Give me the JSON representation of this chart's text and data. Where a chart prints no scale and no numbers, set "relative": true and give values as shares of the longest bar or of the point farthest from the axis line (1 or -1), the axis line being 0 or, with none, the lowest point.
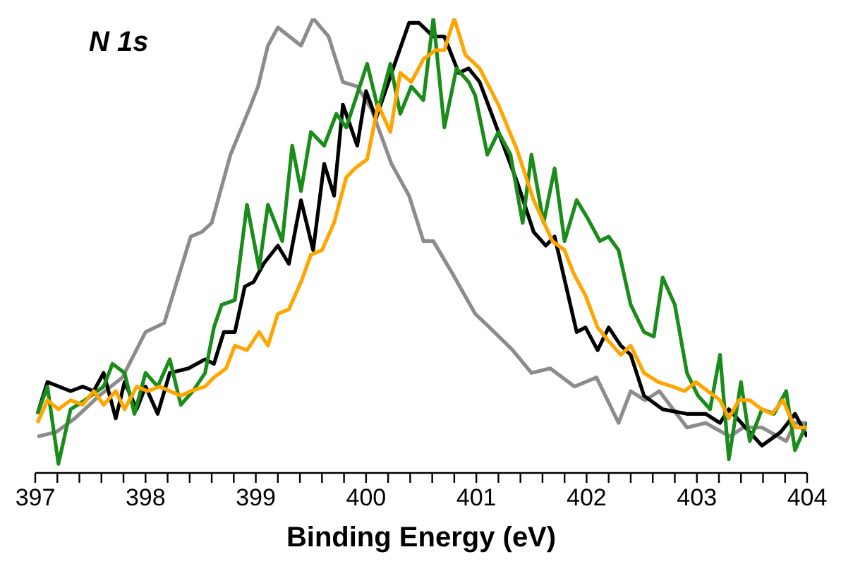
{
  "chart_data": {
    "type": "line",
    "xlabel": "Binding Energy (eV)",
    "annotations": [
      "N 1s"
    ],
    "relative": true,
    "xlim": [
      397,
      404
    ],
    "xticks": [
      397,
      {
        "value": 397.2,
        "label": null
      },
      {
        "value": 397.4,
        "label": null
      },
      {
        "value": 397.6,
        "label": null
      },
      {
        "value": 397.8,
        "label": null
      },
      398,
      {
        "value": 398.2,
        "label": null
      },
      {
        "value": 398.4,
        "label": null
      },
      {
        "value": 398.6,
        "label": null
      },
      {
        "value": 398.8,
        "label": null
      },
      399,
      {
        "value": 399.2,
        "label": null
      },
      {
        "value": 399.4,
        "label": null
      },
      {
        "value": 399.6,
        "label": null
      },
      {
        "value": 399.8,
        "label": null
      },
      400,
      {
        "value": 400.2,
        "label": null
      },
      {
        "value": 400.4,
        "label": null
      },
      {
        "value": 400.6,
        "label": null
      },
      {
        "value": 400.8,
        "label": null
      },
      401,
      {
        "value": 401.2,
        "label": null
      },
      {
        "value": 401.4,
        "label": null
      },
      {
        "value": 401.6,
        "label": null
      },
      {
        "value": 401.8,
        "label": null
      },
      402,
      {
        "value": 402.2,
        "label": null
      },
      {
        "value": 402.4,
        "label": null
      },
      {
        "value": 402.6,
        "label": null
      },
      {
        "value": 402.8,
        "label": null
      },
      403,
      {
        "value": 403.2,
        "label": null
      },
      {
        "value": 403.4,
        "label": null
      },
      {
        "value": 403.6,
        "label": null
      },
      {
        "value": 403.8,
        "label": null
      },
      404
    ],
    "series": [
      {
        "color": "#8c8c8c",
        "x": [
          397.02,
          397.19,
          397.36,
          397.58,
          397.79,
          398.0,
          398.17,
          398.41,
          398.51,
          398.6,
          398.77,
          398.94,
          399.02,
          399.11,
          399.2,
          399.41,
          399.52,
          399.66,
          399.79,
          399.92,
          400.05,
          400.23,
          400.39,
          400.52,
          400.61,
          400.78,
          400.99,
          401.12,
          401.33,
          401.5,
          401.67,
          401.89,
          402.09,
          402.29,
          402.4,
          402.53,
          402.66,
          402.91,
          403.08,
          403.3,
          403.42,
          403.59,
          403.81,
          403.89,
          404.0
        ],
        "values": [
          0.08,
          0.09,
          0.12,
          0.17,
          0.21,
          0.31,
          0.33,
          0.52,
          0.53,
          0.55,
          0.7,
          0.8,
          0.85,
          0.94,
          0.98,
          0.94,
          1.0,
          0.96,
          0.86,
          0.85,
          0.8,
          0.68,
          0.61,
          0.51,
          0.51,
          0.44,
          0.35,
          0.32,
          0.27,
          0.22,
          0.23,
          0.19,
          0.21,
          0.11,
          0.18,
          0.16,
          0.18,
          0.1,
          0.11,
          0.08,
          0.1,
          0.1,
          0.07,
          0.11,
          0.11
        ]
      },
      {
        "color": "#000000",
        "x": [
          397.02,
          397.11,
          397.32,
          397.43,
          397.53,
          397.62,
          397.73,
          397.81,
          397.92,
          398.0,
          398.11,
          398.22,
          398.39,
          398.54,
          398.62,
          398.71,
          398.81,
          398.9,
          398.98,
          399.07,
          399.2,
          399.3,
          399.41,
          399.52,
          399.62,
          399.71,
          399.79,
          399.92,
          400.0,
          400.09,
          400.26,
          400.39,
          400.48,
          400.61,
          400.71,
          400.84,
          400.93,
          401.03,
          401.2,
          401.37,
          401.52,
          401.63,
          401.71,
          401.91,
          401.99,
          402.1,
          402.2,
          402.31,
          402.4,
          402.52,
          402.69,
          402.91,
          403.08,
          403.21,
          403.29,
          403.59,
          403.76,
          403.89,
          404.0
        ],
        "values": [
          0.13,
          0.2,
          0.18,
          0.19,
          0.18,
          0.22,
          0.12,
          0.2,
          0.14,
          0.19,
          0.13,
          0.22,
          0.23,
          0.25,
          0.24,
          0.31,
          0.31,
          0.41,
          0.42,
          0.46,
          0.5,
          0.46,
          0.6,
          0.49,
          0.68,
          0.61,
          0.81,
          0.72,
          0.84,
          0.78,
          0.9,
          0.99,
          0.99,
          0.96,
          0.96,
          0.88,
          0.89,
          0.86,
          0.75,
          0.64,
          0.53,
          0.5,
          0.52,
          0.31,
          0.32,
          0.27,
          0.32,
          0.28,
          0.26,
          0.17,
          0.14,
          0.13,
          0.13,
          0.11,
          0.14,
          0.06,
          0.09,
          0.13,
          0.08
        ]
      },
      {
        "color": "#1a8c1a",
        "x": [
          397.02,
          397.11,
          397.21,
          397.32,
          397.45,
          397.62,
          397.7,
          397.81,
          397.9,
          398.0,
          398.11,
          398.22,
          398.32,
          398.43,
          398.54,
          398.62,
          398.69,
          398.81,
          398.92,
          399.03,
          399.11,
          399.24,
          399.33,
          399.41,
          399.5,
          399.62,
          399.73,
          399.82,
          400.01,
          400.11,
          400.22,
          400.31,
          400.41,
          400.52,
          400.61,
          400.71,
          400.82,
          400.93,
          400.99,
          401.1,
          401.2,
          401.31,
          401.42,
          401.5,
          401.61,
          401.71,
          401.8,
          401.91,
          402.01,
          402.12,
          402.2,
          402.29,
          402.4,
          402.52,
          402.61,
          402.69,
          402.8,
          402.91,
          403.01,
          403.12,
          403.21,
          403.29,
          403.4,
          403.48,
          403.59,
          403.7,
          403.81,
          403.89,
          404.0
        ],
        "values": [
          0.13,
          0.19,
          0.02,
          0.14,
          0.16,
          0.19,
          0.24,
          0.22,
          0.13,
          0.22,
          0.19,
          0.25,
          0.15,
          0.18,
          0.22,
          0.32,
          0.37,
          0.38,
          0.59,
          0.45,
          0.59,
          0.51,
          0.72,
          0.62,
          0.75,
          0.72,
          0.79,
          0.76,
          0.9,
          0.8,
          0.9,
          0.79,
          0.85,
          0.82,
          1.0,
          0.76,
          0.89,
          0.86,
          0.83,
          0.7,
          0.75,
          0.7,
          0.55,
          0.7,
          0.55,
          0.67,
          0.51,
          0.6,
          0.56,
          0.51,
          0.52,
          0.49,
          0.37,
          0.31,
          0.3,
          0.43,
          0.37,
          0.22,
          0.17,
          0.14,
          0.26,
          0.03,
          0.2,
          0.07,
          0.14,
          0.13,
          0.18,
          0.05,
          0.11
        ]
      },
      {
        "color": "#ffa500",
        "x": [
          397.02,
          397.11,
          397.21,
          397.32,
          397.43,
          397.53,
          397.62,
          397.73,
          397.81,
          397.92,
          398.02,
          398.13,
          398.22,
          398.32,
          398.41,
          398.54,
          398.62,
          398.73,
          398.81,
          398.92,
          399.03,
          399.11,
          399.2,
          399.3,
          399.41,
          399.5,
          399.6,
          399.71,
          399.82,
          399.9,
          400.01,
          400.11,
          400.22,
          400.31,
          400.41,
          400.52,
          400.63,
          400.71,
          400.8,
          400.9,
          401.03,
          401.2,
          401.37,
          401.52,
          401.69,
          401.8,
          401.88,
          401.99,
          402.1,
          402.2,
          402.31,
          402.4,
          402.52,
          402.65,
          402.78,
          402.89,
          402.99,
          403.1,
          403.21,
          403.29,
          403.38,
          403.48,
          403.59,
          403.68,
          403.78,
          403.89,
          404.0
        ],
        "values": [
          0.11,
          0.16,
          0.14,
          0.16,
          0.15,
          0.18,
          0.15,
          0.18,
          0.14,
          0.19,
          0.18,
          0.19,
          0.18,
          0.17,
          0.18,
          0.19,
          0.21,
          0.23,
          0.28,
          0.27,
          0.31,
          0.28,
          0.35,
          0.36,
          0.42,
          0.48,
          0.49,
          0.55,
          0.65,
          0.67,
          0.69,
          0.81,
          0.75,
          0.88,
          0.86,
          0.91,
          0.93,
          0.93,
          1.0,
          0.92,
          0.89,
          0.81,
          0.71,
          0.6,
          0.51,
          0.49,
          0.44,
          0.39,
          0.32,
          0.29,
          0.26,
          0.28,
          0.22,
          0.2,
          0.19,
          0.18,
          0.2,
          0.18,
          0.16,
          0.12,
          0.16,
          0.16,
          0.14,
          0.13,
          0.16,
          0.1,
          0.1
        ]
      }
    ]
  }
}
